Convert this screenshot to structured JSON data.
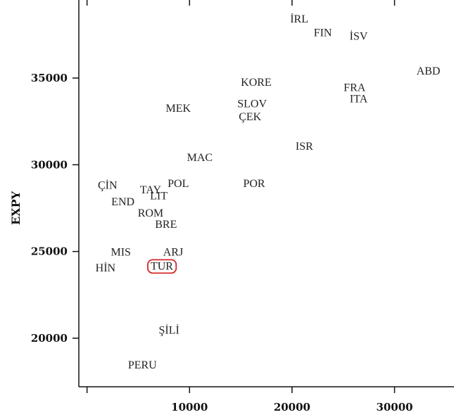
{
  "chart_data": {
    "type": "scatter",
    "title": "",
    "xlabel": "",
    "ylabel": "EXPY",
    "xlim": [
      -800,
      35800
    ],
    "ylim": [
      17200,
      39500
    ],
    "xticks": [
      0,
      10000,
      20000,
      30000
    ],
    "xtick_labels": [
      "",
      "10000",
      "20000",
      "30000"
    ],
    "yticks": [
      20000,
      25000,
      30000,
      35000
    ],
    "ytick_labels": [
      "20000",
      "25000",
      "30000",
      "35000"
    ],
    "grid": false,
    "highlight": {
      "label": "TUR",
      "color": "#d62728"
    },
    "points": [
      {
        "label": "İRL",
        "x": 20700,
        "y": 38450
      },
      {
        "label": "FIN",
        "x": 23000,
        "y": 37650
      },
      {
        "label": "İSV",
        "x": 26500,
        "y": 37450
      },
      {
        "label": "ABD",
        "x": 33300,
        "y": 35450
      },
      {
        "label": "KORE",
        "x": 16500,
        "y": 34800
      },
      {
        "label": "FRA",
        "x": 26100,
        "y": 34500
      },
      {
        "label": "ITA",
        "x": 26500,
        "y": 33850
      },
      {
        "label": "MEK",
        "x": 8900,
        "y": 33300
      },
      {
        "label": "SLOV",
        "x": 16100,
        "y": 33550
      },
      {
        "label": "ÇEK",
        "x": 15900,
        "y": 32800
      },
      {
        "label": "ISR",
        "x": 21200,
        "y": 31100
      },
      {
        "label": "MAC",
        "x": 11000,
        "y": 30450
      },
      {
        "label": "ÇİN",
        "x": 2000,
        "y": 28850
      },
      {
        "label": "TAY",
        "x": 6200,
        "y": 28600
      },
      {
        "label": "POL",
        "x": 8900,
        "y": 28950
      },
      {
        "label": "POR",
        "x": 16300,
        "y": 28950
      },
      {
        "label": "LIT",
        "x": 7000,
        "y": 28250
      },
      {
        "label": "END",
        "x": 3500,
        "y": 27900
      },
      {
        "label": "ROM",
        "x": 6200,
        "y": 27250
      },
      {
        "label": "BRE",
        "x": 7700,
        "y": 26600
      },
      {
        "label": "MIS",
        "x": 3300,
        "y": 25000
      },
      {
        "label": "ARJ",
        "x": 8400,
        "y": 25000
      },
      {
        "label": "HİN",
        "x": 1800,
        "y": 24100
      },
      {
        "label": "TUR",
        "x": 7300,
        "y": 24200
      },
      {
        "label": "ŞİLİ",
        "x": 8000,
        "y": 20500
      },
      {
        "label": "PERU",
        "x": 5400,
        "y": 18500
      }
    ]
  }
}
